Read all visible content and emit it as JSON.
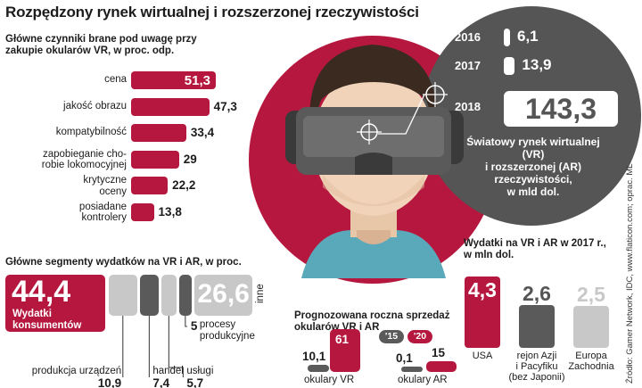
{
  "title": "Rozpędzony rynek wirtualnej i rozszerzonej rzeczywistości",
  "source": "Źródło: Gamer Network, IDC, www.flaticon.com; oprac. ML",
  "colors": {
    "accent": "#b5173e",
    "dark": "#5a5a5a",
    "light": "#c8c8c8",
    "circle": "#555555"
  },
  "chart_data": [
    {
      "type": "bar",
      "title": "Główne czynniki brane pod uwagę przy zakupie okularów VR, w proc. odp.",
      "orientation": "horizontal",
      "categories": [
        "cena",
        "jakość obrazu",
        "kompatybilność",
        "zapobieganie chorobie lokomocyjnej",
        "krytyczne oceny",
        "posiadane kontrolery"
      ],
      "label_lines": [
        [
          "cena"
        ],
        [
          "jakość obrazu"
        ],
        [
          "kompatybilność"
        ],
        [
          "zapobieganie cho-",
          "robie lokomocyjnej"
        ],
        [
          "krytyczne",
          "oceny"
        ],
        [
          "posiadane",
          "kontrolery"
        ]
      ],
      "values": [
        51.3,
        47.3,
        33.4,
        29,
        22.2,
        13.8
      ],
      "value_labels": [
        "51,3",
        "47,3",
        "33,4",
        "29",
        "22,2",
        "13,8"
      ],
      "highlight_index": 0
    },
    {
      "type": "bar",
      "title": "Światowy rynek wirtualnej (VR) i rozszerzonej (AR) rzeczywistości, w mld dol.",
      "title_lines": [
        "Światowy rynek wirtualnej (VR)",
        "i rozszerzonej (AR)",
        "rzeczywistości,",
        "w mld dol."
      ],
      "categories": [
        "2016",
        "2017",
        "2018"
      ],
      "values": [
        6.1,
        13.9,
        143.3
      ],
      "value_labels": [
        "6,1",
        "13,9",
        "143,3"
      ]
    },
    {
      "type": "bar",
      "title": "Główne segmenty wydatków na VR i AR, w proc.",
      "stacked": true,
      "segments": [
        {
          "name": "Wydatki konsumentów",
          "name_lines": [
            "Wydatki",
            "konsumentów"
          ],
          "value": 44.4,
          "value_label": "44,4"
        },
        {
          "name": "produkcja urządzeń",
          "value": 10.9,
          "value_label": "10,9"
        },
        {
          "name": "handel",
          "value": 7.4,
          "value_label": "7,4"
        },
        {
          "name": "usługi",
          "value": 5.7,
          "value_label": "5,7"
        },
        {
          "name": "procesy produkcyjne",
          "name_lines": [
            "procesy",
            "produkcyjne"
          ],
          "value": 5,
          "value_label": "5"
        },
        {
          "name": "inne",
          "value": 26.6,
          "value_label": "26,6"
        }
      ]
    },
    {
      "type": "bar",
      "title": "Prognozowana roczna sprzedaż okularów VR i AR",
      "title_lines": [
        "Prognozowana roczna sprzedaż",
        "okularów VR i AR"
      ],
      "categories": [
        "okulary VR",
        "okulary AR"
      ],
      "legend": [
        "'15",
        "'20"
      ],
      "series": [
        {
          "name": "'15",
          "values": [
            10.1,
            0.1
          ],
          "value_labels": [
            "10,1",
            "0,1"
          ]
        },
        {
          "name": "'20",
          "values": [
            61,
            15
          ],
          "value_labels": [
            "61",
            "15"
          ]
        }
      ]
    },
    {
      "type": "bar",
      "title": "Wydatki na VR i AR w 2017 r., w mln dol.",
      "title_lines": [
        "Wydatki na VR i AR w 2017 r.,",
        "w mln dol."
      ],
      "categories": [
        "USA",
        "rejon Azji i Pacyfiku (bez Japonii)",
        "Europa Zachodnia"
      ],
      "label_lines": [
        [
          "USA"
        ],
        [
          "rejon Azji",
          "i Pacyfiku",
          "(bez Japonii)"
        ],
        [
          "Europa",
          "Zachodnia"
        ]
      ],
      "values": [
        4.3,
        2.6,
        2.5
      ],
      "value_labels": [
        "4,3",
        "2,6",
        "2,5"
      ]
    }
  ]
}
